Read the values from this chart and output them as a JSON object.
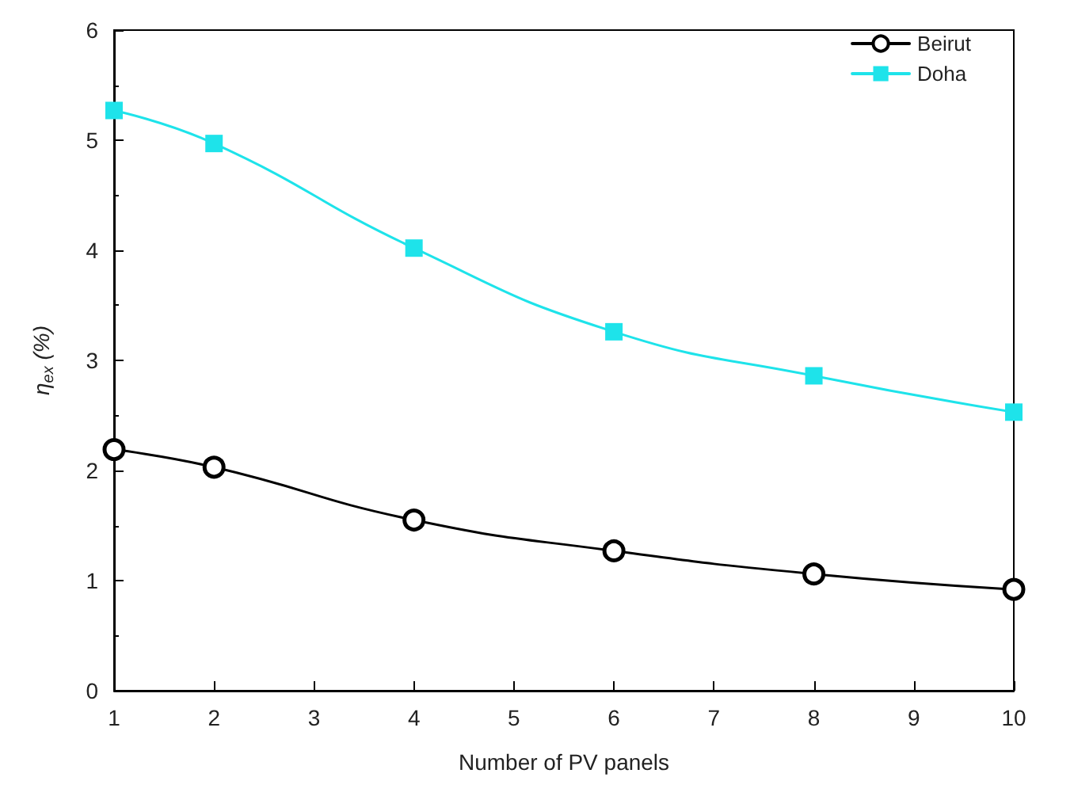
{
  "chart_data": {
    "type": "line",
    "xlabel": "Number of PV panels",
    "ylabel": "η$_{ex}$ (%)",
    "x": [
      1,
      2,
      4,
      6,
      8,
      10
    ],
    "series": [
      {
        "name": "Beirut",
        "color": "#000000",
        "marker": "circle",
        "values": [
          2.19,
          2.03,
          1.55,
          1.27,
          1.06,
          0.92
        ]
      },
      {
        "name": "Doha",
        "color": "#1ee3ea",
        "marker": "square",
        "values": [
          5.27,
          4.97,
          4.02,
          3.26,
          2.86,
          2.53
        ]
      }
    ],
    "xlim": [
      1,
      10
    ],
    "xticks": [
      1,
      2,
      3,
      4,
      5,
      6,
      7,
      8,
      9,
      10
    ],
    "ylim": [
      0,
      6
    ],
    "yticks": [
      0,
      1,
      2,
      3,
      4,
      5,
      6
    ],
    "legend": "top right",
    "grid": false,
    "line_style": "solid"
  }
}
